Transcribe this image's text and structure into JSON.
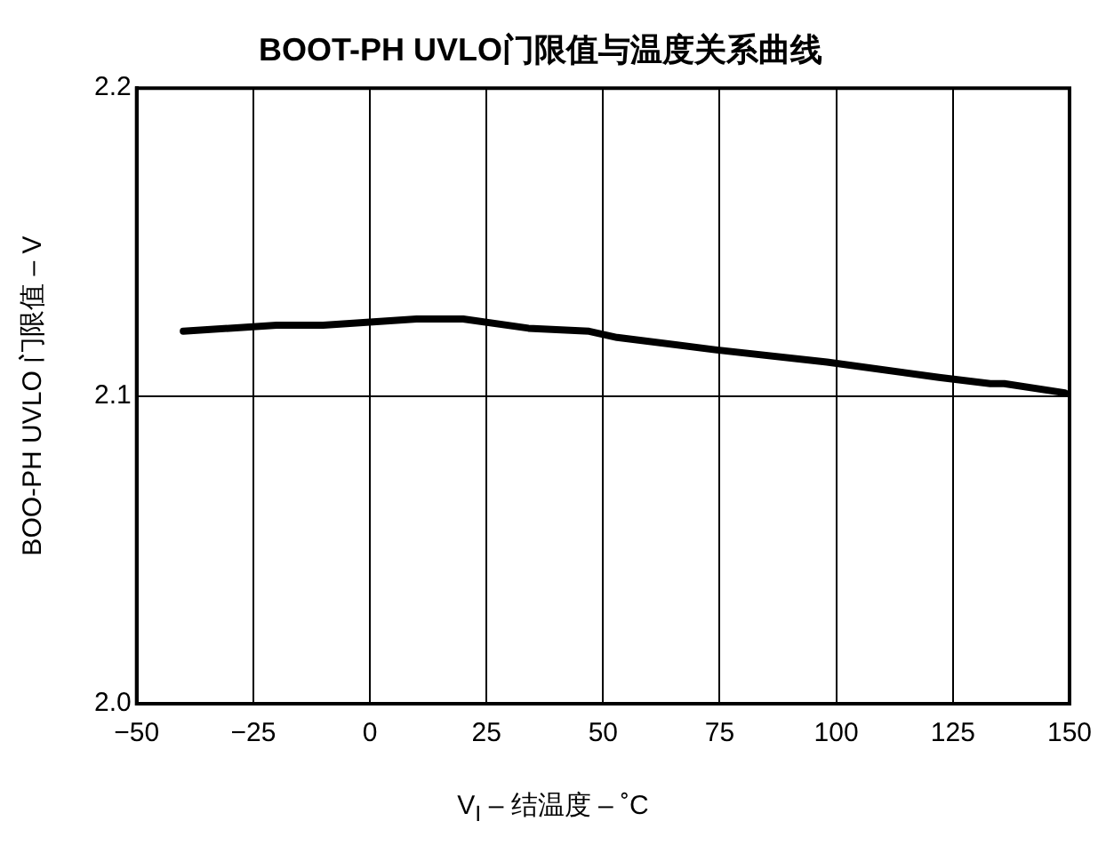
{
  "chart_data": {
    "type": "line",
    "title": "BOOT-PH UVLO门限值与温度关系曲线",
    "xlabel": "V$_{I}$ – 结温度 – ˚C",
    "ylabel": "BOO-PH UVLO 门限值 – V",
    "x": [
      -40,
      -20,
      -10,
      10,
      20,
      34,
      47,
      53,
      74,
      98,
      122,
      133,
      136,
      149
    ],
    "series": [
      {
        "color": "#000000",
        "values": [
          2.121,
          2.123,
          2.123,
          2.125,
          2.125,
          2.122,
          2.121,
          2.119,
          2.115,
          2.111,
          2.106,
          2.104,
          2.104,
          2.101
        ]
      }
    ],
    "xlim": [
      -50,
      150
    ],
    "xticks": [
      {
        "value": -50,
        "label": "−50"
      },
      {
        "value": -25,
        "label": "−25"
      },
      0,
      25,
      50,
      75,
      100,
      125,
      150
    ],
    "ylim": [
      2.0,
      2.2
    ],
    "yticks": [
      {
        "value": 2.0,
        "label": "2.0"
      },
      2.1,
      2.2
    ],
    "grid": true,
    "legend": false,
    "marker": "none",
    "line_style": "solid"
  }
}
